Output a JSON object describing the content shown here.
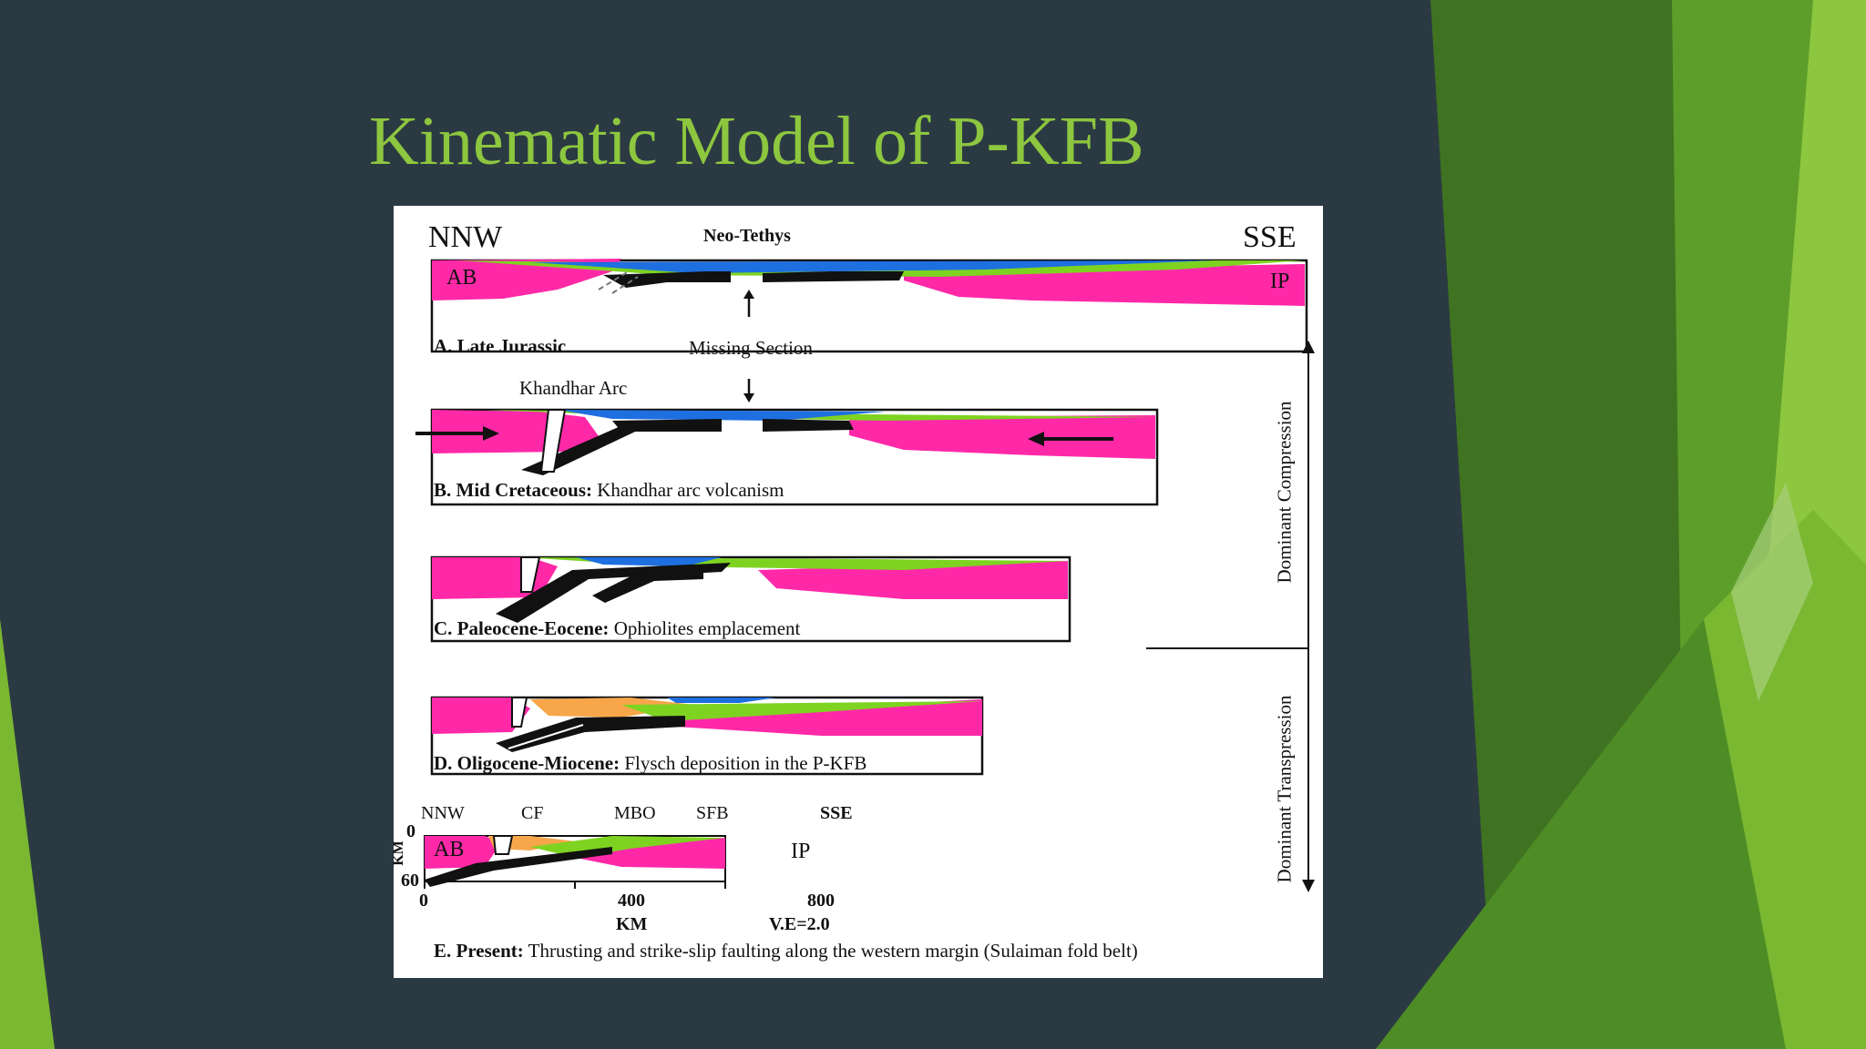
{
  "slide": {
    "title": "Kinematic Model of P-KFB"
  },
  "colors": {
    "background": "#2b3a42",
    "accent_green": "#8dc63f",
    "plate_magenta": "#ff29a8",
    "ocean_blue": "#1e6fe0",
    "sediment_green": "#7ed321",
    "flysch_orange": "#f7a64a"
  },
  "diagram": {
    "top_left_direction": "NNW",
    "top_right_direction": "SSE",
    "ocean_label": "Neo-Tethys",
    "plate_left": "AB",
    "plate_right": "IP",
    "missing_section": "Missing Section",
    "arc_label": "Khandhar Arc",
    "panels": [
      {
        "title": "A. Late Jurassic",
        "desc": ""
      },
      {
        "title": "B. Mid Cretaceous:",
        "desc": "Khandhar arc volcanism"
      },
      {
        "title": "C. Paleocene-Eocene:",
        "desc": "Ophiolites emplacement"
      },
      {
        "title": "D. Oligocene-Miocene:",
        "desc": "Flysch deposition in the P-KFB"
      },
      {
        "title": "E. Present:",
        "desc": "Thrusting and strike-slip faulting along the western margin (Sulaiman fold belt)"
      }
    ],
    "present_section": {
      "left_dir": "NNW",
      "right_dir": "SSE",
      "labels": [
        "CF",
        "MBO",
        "SFB"
      ],
      "plate_left": "AB",
      "plate_right": "IP",
      "depth_top": "0",
      "depth_bottom": "60",
      "depth_unit": "KM",
      "x_ticks": [
        "0",
        "400",
        "800"
      ],
      "x_unit": "KM",
      "vertical_exaggeration": "V.E=2.0"
    },
    "regimes": [
      "Dominant Compression",
      "Dominant Transpression"
    ]
  }
}
